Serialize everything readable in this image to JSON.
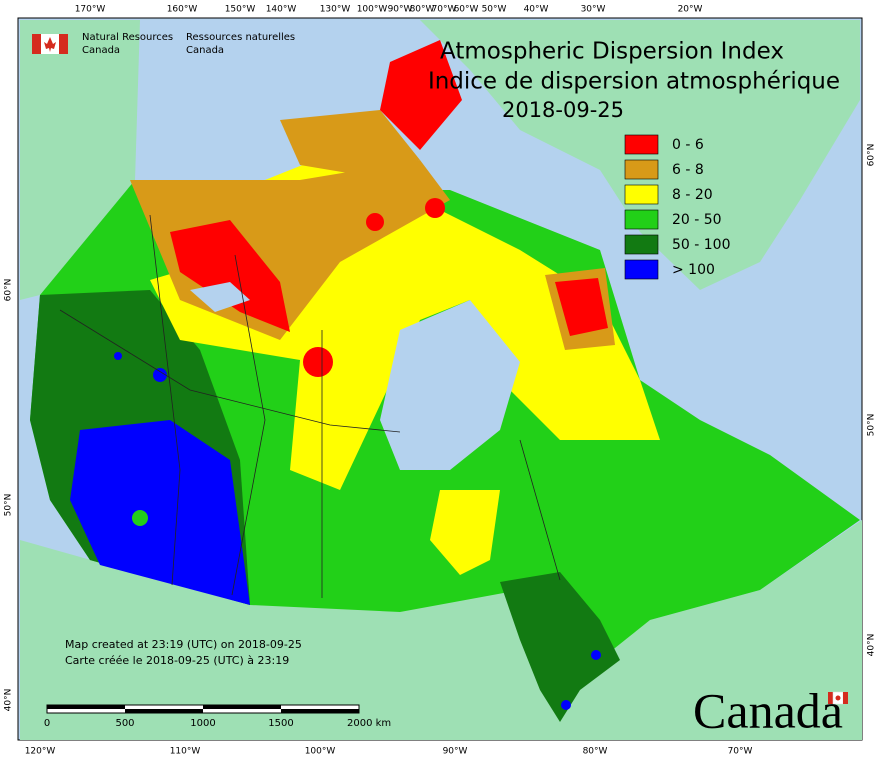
{
  "header": {
    "org_en": [
      "Natural Resources",
      "Canada"
    ],
    "org_fr": [
      "Ressources naturelles",
      "Canada"
    ]
  },
  "title": [
    "Atmospheric Dispersion Index",
    "Indice de dispersion atmosphérique"
  ],
  "date": "2018-09-25",
  "legend": [
    {
      "label": "0 - 6",
      "color": "#ff0000"
    },
    {
      "label": "6 - 8",
      "color": "#d89a18"
    },
    {
      "label": "8 - 20",
      "color": "#ffff00"
    },
    {
      "label": "20 - 50",
      "color": "#22d018"
    },
    {
      "label": "50 - 100",
      "color": "#127a12"
    },
    {
      "label": "> 100",
      "color": "#0000ff"
    }
  ],
  "graticule": {
    "top": [
      "170°W",
      "160°W",
      "150°W",
      "140°W",
      "130°W",
      "100°W",
      "90°W",
      "80°W",
      "70°W",
      "60°W",
      "50°W",
      "40°W",
      "30°W",
      "20°W"
    ],
    "bottom": [
      "120°W",
      "110°W",
      "100°W",
      "90°W",
      "80°W",
      "70°W"
    ],
    "left": [
      "60°N",
      "50°N",
      "40°N"
    ],
    "right": [
      "60°N",
      "50°N",
      "40°N"
    ]
  },
  "notes": [
    "Map created at 23:19 (UTC) on 2018-09-25",
    "Carte créée le 2018-09-25 (UTC) à 23:19"
  ],
  "scale_bar": [
    "0",
    "500",
    "1000",
    "1500",
    "2000 km"
  ],
  "wordmark": "Canada"
}
